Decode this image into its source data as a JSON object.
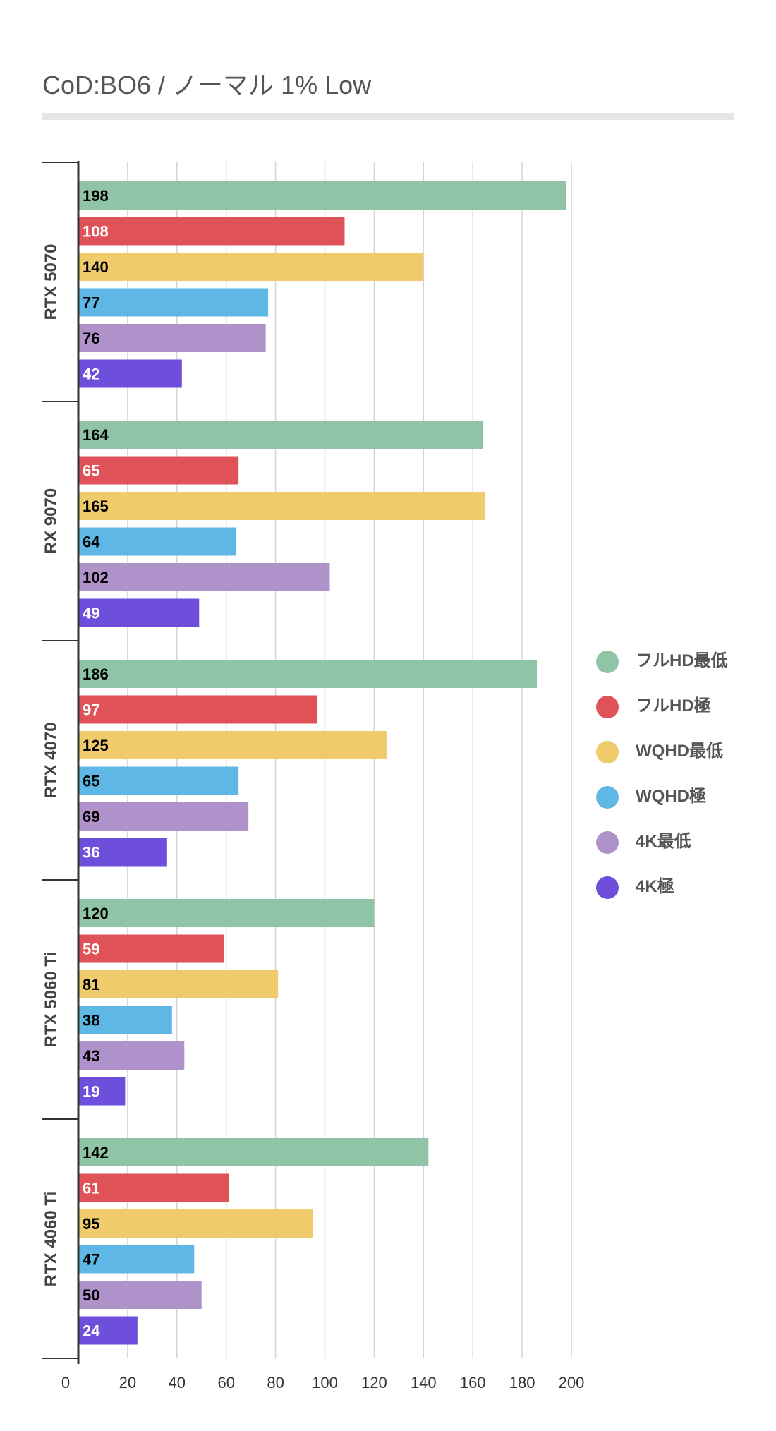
{
  "chart_data": {
    "type": "bar",
    "orientation": "horizontal",
    "title": "CoD:BO6 /  ノーマル 1% Low",
    "categories": [
      "RTX 5070",
      "RX 9070",
      "RTX 4070",
      "RTX 5060 Ti",
      "RTX 4060 Ti"
    ],
    "series": [
      {
        "name": "フルHD最低",
        "color": "#8fc4a6",
        "label_color": "#000000",
        "values": [
          198,
          164,
          186,
          120,
          142
        ]
      },
      {
        "name": "フルHD極",
        "color": "#df5257",
        "label_color": "#ffffff",
        "values": [
          108,
          65,
          97,
          59,
          61
        ]
      },
      {
        "name": "WQHD最低",
        "color": "#f0cb6b",
        "label_color": "#000000",
        "values": [
          140,
          165,
          125,
          81,
          95
        ]
      },
      {
        "name": "WQHD極",
        "color": "#5fb7e5",
        "label_color": "#000000",
        "values": [
          77,
          64,
          65,
          38,
          47
        ]
      },
      {
        "name": "4K最低",
        "color": "#ae92c9",
        "label_color": "#000000",
        "values": [
          76,
          102,
          69,
          43,
          50
        ]
      },
      {
        "name": "4K極",
        "color": "#6d4fdb",
        "label_color": "#ffffff",
        "values": [
          42,
          49,
          36,
          19,
          24
        ]
      }
    ],
    "xlim": [
      0,
      200
    ],
    "xticks": [
      0,
      20,
      40,
      60,
      80,
      100,
      120,
      140,
      160,
      180,
      200
    ],
    "grid": true,
    "legend_position": "right"
  }
}
